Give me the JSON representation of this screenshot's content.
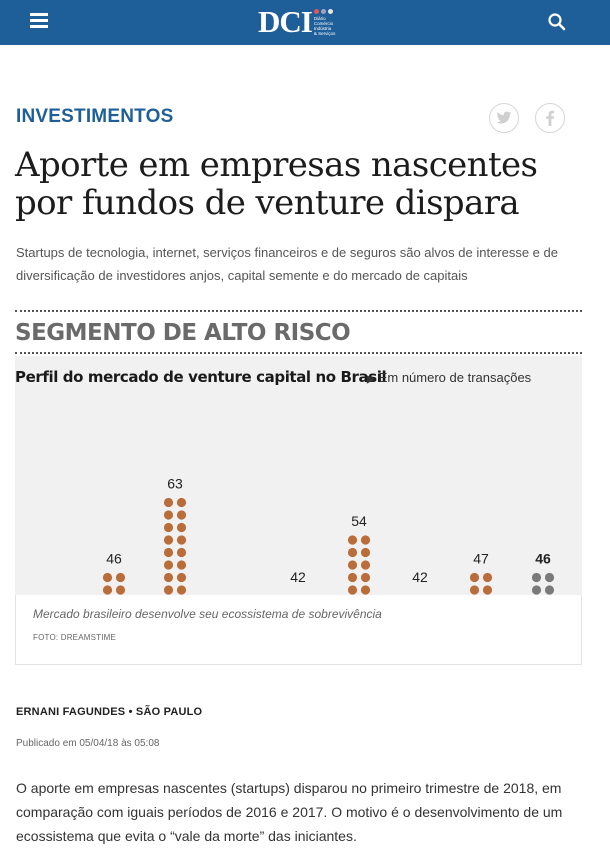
{
  "header": {
    "logo_text": "DCI",
    "logo_subtitle": "Diário Comércio Indústria & Serviços",
    "logo_dot_colors": [
      "#e45757",
      "#9aa6c4",
      "#e7e7e7"
    ],
    "menu_icon": "hamburger-menu-icon",
    "search_icon": "search-icon",
    "bar_color": "#1f5f99"
  },
  "article": {
    "section": "INVESTIMENTOS",
    "share": {
      "twitter_icon": "twitter-icon",
      "facebook_icon": "facebook-icon"
    },
    "headline": "Aporte em empresas nascentes por fundos de venture dispara",
    "subtitle": "Startups de tecnologia, internet, serviços financeiros e de seguros são alvos de interesse e de diversificação de investidores anjos, capital semente e do mercado de capitais",
    "image": {
      "heading": "SEGMENTO DE ALTO RISCO",
      "chart_title": "Perfil do mercado de venture capital no Brasil",
      "chart_subtitle": "Em número de transações",
      "caption": "Mercado brasileiro desenvolve seu ecossistema de sobrevivência",
      "credit": "FOTO: DREAMSTIME"
    },
    "byline": "ERNANI FAGUNDES • SÃO PAULO",
    "published": "Publicado em 05/04/18 às 05:08",
    "body": "O aporte em empresas nascentes (startups) disparou no primeiro trimestre de 2018, em comparação com iguais períodos de 2016 e 2017. O motivo é o desenvolvimento de um ecossistema que evita o “vale da morte” das iniciantes."
  },
  "chart_data": {
    "type": "bar",
    "title": "Perfil do mercado de venture capital no Brasil",
    "subtitle": "Em número de transações",
    "values": [
      46,
      63,
      42,
      54,
      42,
      47,
      46
    ],
    "highlight_last": true,
    "dot_color": "#b86d3a",
    "highlight_color": "#7a7a7a"
  }
}
